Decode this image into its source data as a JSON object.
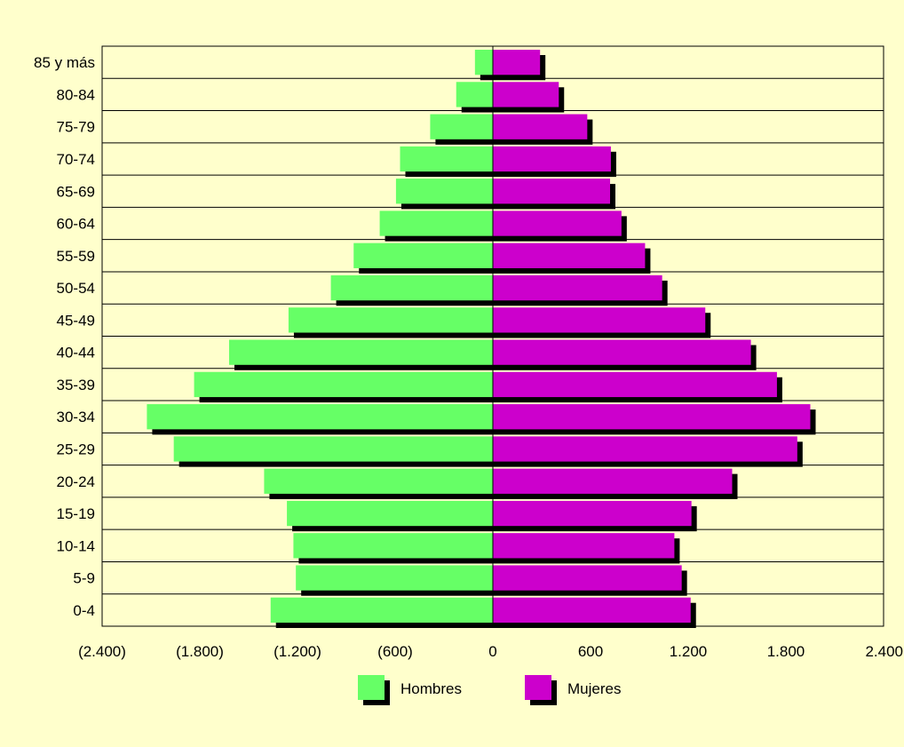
{
  "chart_data": {
    "type": "bar",
    "orientation": "horizontal",
    "layout": "population-pyramid",
    "categories": [
      "85 y más",
      "80-84",
      "75-79",
      "70-74",
      "65-69",
      "60-64",
      "55-59",
      "50-54",
      "45-49",
      "40-44",
      "35-39",
      "30-34",
      "25-29",
      "20-24",
      "15-19",
      "10-14",
      "5-9",
      "0-4"
    ],
    "series": [
      {
        "name": "Hombres",
        "color": "#66ff66",
        "values": [
          -110,
          -225,
          -385,
          -570,
          -595,
          -695,
          -855,
          -995,
          -1255,
          -1620,
          -1835,
          -2125,
          -1960,
          -1405,
          -1265,
          -1225,
          -1210,
          -1365
        ]
      },
      {
        "name": "Mujeres",
        "color": "#cc00cc",
        "values": [
          290,
          405,
          580,
          725,
          720,
          790,
          935,
          1040,
          1305,
          1585,
          1745,
          1950,
          1870,
          1470,
          1220,
          1115,
          1160,
          1215
        ]
      }
    ],
    "xlim": [
      -2400,
      2400
    ],
    "xticks": [
      -2400,
      -1800,
      -1200,
      -600,
      0,
      600,
      1200,
      1800,
      2400
    ],
    "xtick_labels": [
      "(2.400)",
      "(1.800)",
      "(1.200)",
      "(600)",
      "0",
      "600",
      "1.200",
      "1.800",
      "2.400"
    ],
    "grid": "horizontal",
    "legend_position": "bottom",
    "background": "#ffffcc",
    "bar_shadow_color": "#000000"
  }
}
